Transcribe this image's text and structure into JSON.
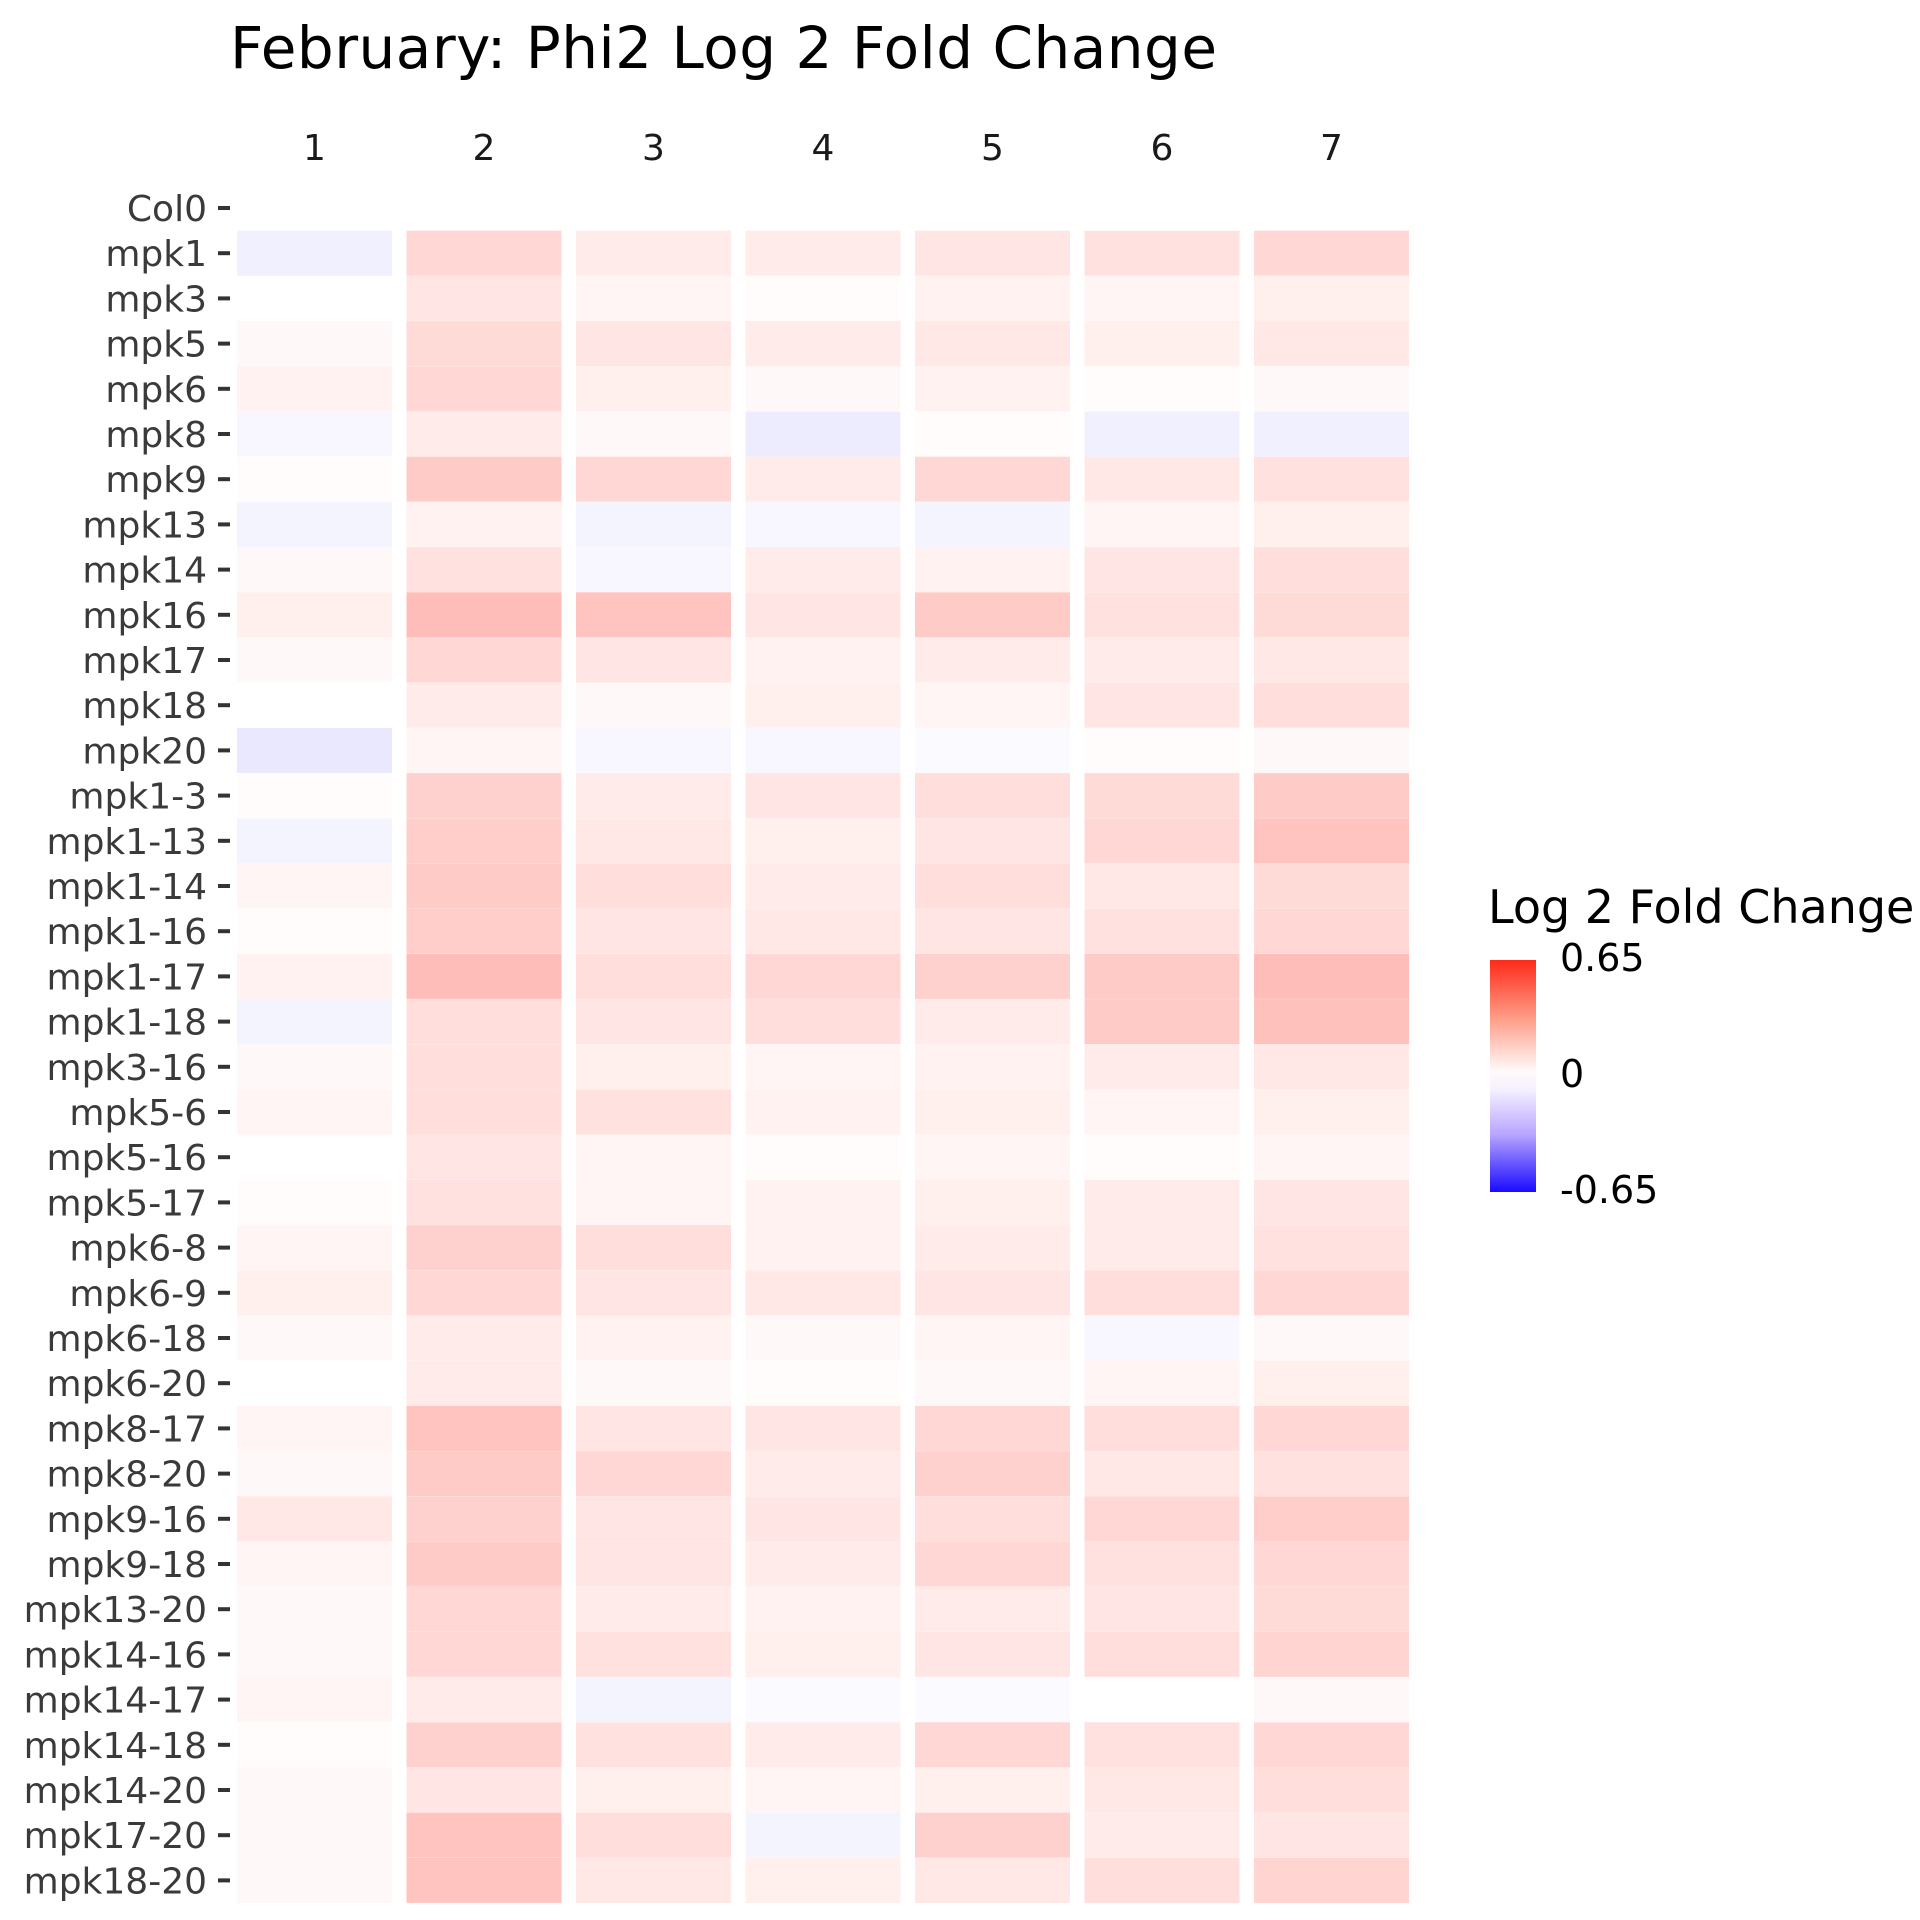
{
  "chart_data": {
    "type": "heatmap",
    "title": "February: Phi2 Log 2 Fold Change",
    "columns": [
      "1",
      "2",
      "3",
      "4",
      "5",
      "6",
      "7"
    ],
    "rows": [
      "Col0",
      "mpk1",
      "mpk3",
      "mpk5",
      "mpk6",
      "mpk8",
      "mpk9",
      "mpk13",
      "mpk14",
      "mpk16",
      "mpk17",
      "mpk18",
      "mpk20",
      "mpk1-3",
      "mpk1-13",
      "mpk1-14",
      "mpk1-16",
      "mpk1-17",
      "mpk1-18",
      "mpk3-16",
      "mpk5-6",
      "mpk5-16",
      "mpk5-17",
      "mpk6-8",
      "mpk6-9",
      "mpk6-18",
      "mpk6-20",
      "mpk8-17",
      "mpk8-20",
      "mpk9-16",
      "mpk9-18",
      "mpk13-20",
      "mpk14-16",
      "mpk14-17",
      "mpk14-18",
      "mpk14-20",
      "mpk17-20",
      "mpk18-20"
    ],
    "values": [
      [
        0.0,
        0.0,
        0.0,
        0.0,
        0.0,
        0.0,
        0.0
      ],
      [
        -0.04,
        0.12,
        0.06,
        0.06,
        0.08,
        0.09,
        0.12
      ],
      [
        0.0,
        0.08,
        0.03,
        0.01,
        0.04,
        0.03,
        0.05
      ],
      [
        0.02,
        0.11,
        0.08,
        0.06,
        0.07,
        0.05,
        0.07
      ],
      [
        0.04,
        0.12,
        0.05,
        0.02,
        0.04,
        0.01,
        0.02
      ],
      [
        -0.02,
        0.06,
        0.02,
        -0.05,
        0.01,
        -0.04,
        -0.04
      ],
      [
        0.01,
        0.16,
        0.12,
        0.06,
        0.12,
        0.07,
        0.09
      ],
      [
        -0.03,
        0.04,
        -0.03,
        -0.02,
        -0.03,
        0.03,
        0.05
      ],
      [
        0.02,
        0.09,
        -0.02,
        0.06,
        0.04,
        0.08,
        0.1
      ],
      [
        0.05,
        0.2,
        0.18,
        0.08,
        0.16,
        0.09,
        0.11
      ],
      [
        0.02,
        0.12,
        0.08,
        0.04,
        0.06,
        0.06,
        0.07
      ],
      [
        0.0,
        0.06,
        0.02,
        0.05,
        0.03,
        0.08,
        0.1
      ],
      [
        -0.06,
        0.03,
        -0.02,
        -0.02,
        -0.01,
        0.01,
        0.02
      ],
      [
        0.01,
        0.14,
        0.06,
        0.08,
        0.1,
        0.11,
        0.16
      ],
      [
        -0.03,
        0.15,
        0.07,
        0.05,
        0.08,
        0.12,
        0.18
      ],
      [
        0.03,
        0.16,
        0.1,
        0.06,
        0.1,
        0.07,
        0.11
      ],
      [
        0.01,
        0.15,
        0.08,
        0.07,
        0.08,
        0.09,
        0.12
      ],
      [
        0.04,
        0.2,
        0.1,
        0.12,
        0.14,
        0.16,
        0.2
      ],
      [
        -0.03,
        0.1,
        0.08,
        0.1,
        0.06,
        0.16,
        0.19
      ],
      [
        0.02,
        0.1,
        0.05,
        0.03,
        0.04,
        0.06,
        0.07
      ],
      [
        0.03,
        0.1,
        0.09,
        0.04,
        0.05,
        0.03,
        0.05
      ],
      [
        0.0,
        0.08,
        0.03,
        0.01,
        0.03,
        0.01,
        0.03
      ],
      [
        0.01,
        0.09,
        0.03,
        0.04,
        0.05,
        0.06,
        0.08
      ],
      [
        0.03,
        0.14,
        0.1,
        0.04,
        0.06,
        0.06,
        0.09
      ],
      [
        0.05,
        0.12,
        0.08,
        0.07,
        0.08,
        0.1,
        0.12
      ],
      [
        0.02,
        0.06,
        0.04,
        0.02,
        0.03,
        -0.02,
        0.02
      ],
      [
        0.0,
        0.06,
        0.02,
        0.01,
        0.02,
        0.03,
        0.05
      ],
      [
        0.03,
        0.18,
        0.08,
        0.08,
        0.12,
        0.1,
        0.12
      ],
      [
        0.02,
        0.16,
        0.12,
        0.06,
        0.14,
        0.07,
        0.09
      ],
      [
        0.07,
        0.14,
        0.08,
        0.08,
        0.1,
        0.12,
        0.15
      ],
      [
        0.03,
        0.16,
        0.08,
        0.06,
        0.12,
        0.09,
        0.12
      ],
      [
        0.02,
        0.12,
        0.06,
        0.04,
        0.06,
        0.08,
        0.11
      ],
      [
        0.02,
        0.12,
        0.09,
        0.05,
        0.08,
        0.1,
        0.13
      ],
      [
        0.03,
        0.06,
        -0.03,
        -0.01,
        -0.01,
        0.0,
        0.02
      ],
      [
        0.01,
        0.14,
        0.09,
        0.06,
        0.12,
        0.09,
        0.12
      ],
      [
        0.02,
        0.08,
        0.05,
        0.03,
        0.05,
        0.07,
        0.1
      ],
      [
        0.02,
        0.18,
        0.1,
        -0.03,
        0.14,
        0.06,
        0.08
      ],
      [
        0.02,
        0.18,
        0.07,
        0.05,
        0.07,
        0.1,
        0.13
      ]
    ],
    "color_scale": {
      "title": "Log 2 Fold Change",
      "min": -0.65,
      "mid": 0,
      "max": 0.65,
      "labels": [
        "0.65",
        "0",
        "-0.65"
      ],
      "low_color": "#1a0aff",
      "mid_color": "#ffffff",
      "high_color": "#ff2a1a"
    }
  }
}
